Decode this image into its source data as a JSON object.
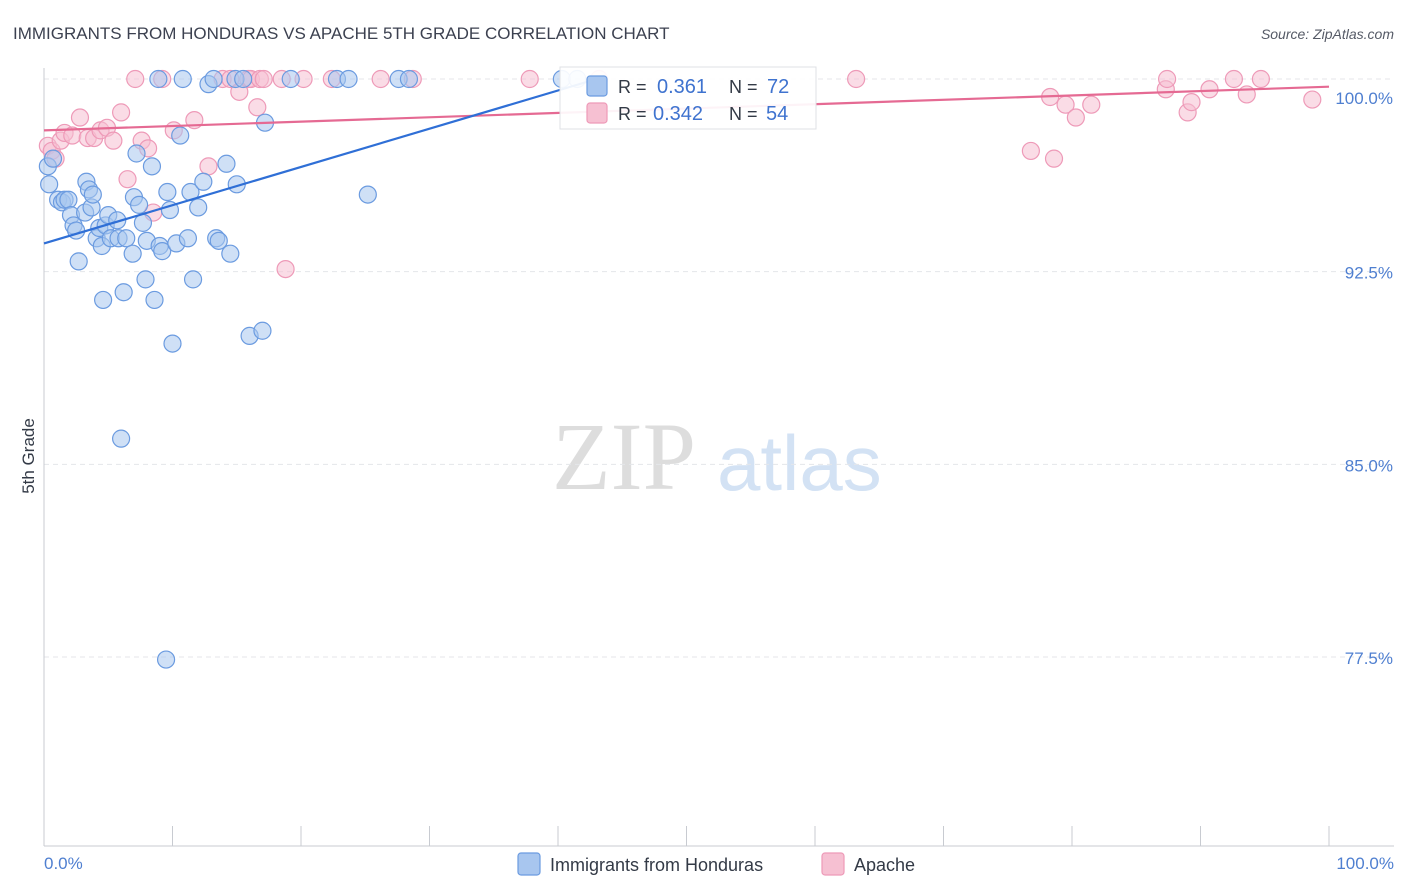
{
  "title": "IMMIGRANTS FROM HONDURAS VS APACHE 5TH GRADE CORRELATION CHART",
  "source": "Source: ZipAtlas.com",
  "watermark": {
    "zip": "ZIP",
    "atlas": "atlas"
  },
  "colors": {
    "blue_fill": "#a8c6ef",
    "blue_stroke": "#6b9be0",
    "blue_line": "#2f6fd6",
    "pink_fill": "#f6c0d2",
    "pink_stroke": "#ee9ab8",
    "pink_line": "#e56a93",
    "axis_text": "#4f7fd0",
    "grid": "#e4e6ea"
  },
  "stats": {
    "r_label": "R =",
    "n_label": "N =",
    "series1": {
      "r": "0.361",
      "n": "72"
    },
    "series2": {
      "r": "0.342",
      "n": "54"
    }
  },
  "chart_data": {
    "type": "scatter",
    "title": "IMMIGRANTS FROM HONDURAS VS APACHE 5TH GRADE CORRELATION CHART",
    "xlabel": "",
    "ylabel": "5th Grade",
    "xlim": [
      0,
      100
    ],
    "ylim": [
      71.0,
      101.8
    ],
    "x_tick_labels": [
      "0.0%",
      "100.0%"
    ],
    "y_ticks": [
      100.0,
      92.5,
      85.0,
      77.5
    ],
    "y_tick_labels": [
      "100.0%",
      "92.5%",
      "85.0%",
      "77.5%"
    ],
    "grid": true,
    "legend_position": "bottom-center",
    "series": [
      {
        "name": "Immigrants from Honduras",
        "color": "blue",
        "trendline": {
          "x": [
            0,
            43
          ],
          "y": [
            93.6,
            100.0
          ]
        },
        "points": [
          [
            0.3,
            96.6
          ],
          [
            0.4,
            95.9
          ],
          [
            0.7,
            96.9
          ],
          [
            1.1,
            95.3
          ],
          [
            1.4,
            95.2
          ],
          [
            1.6,
            95.3
          ],
          [
            1.9,
            95.3
          ],
          [
            2.1,
            94.7
          ],
          [
            2.3,
            94.3
          ],
          [
            2.5,
            94.1
          ],
          [
            2.7,
            92.9
          ],
          [
            3.2,
            94.8
          ],
          [
            3.3,
            96.0
          ],
          [
            3.5,
            95.7
          ],
          [
            3.7,
            95.0
          ],
          [
            3.8,
            95.5
          ],
          [
            4.1,
            93.8
          ],
          [
            4.3,
            94.2
          ],
          [
            4.5,
            93.5
          ],
          [
            4.6,
            91.4
          ],
          [
            4.8,
            94.3
          ],
          [
            5.0,
            94.7
          ],
          [
            5.2,
            93.8
          ],
          [
            5.7,
            94.5
          ],
          [
            5.8,
            93.8
          ],
          [
            6.0,
            86.0
          ],
          [
            6.2,
            91.7
          ],
          [
            6.4,
            93.8
          ],
          [
            6.9,
            93.2
          ],
          [
            7.0,
            95.4
          ],
          [
            7.2,
            97.1
          ],
          [
            7.4,
            95.1
          ],
          [
            7.7,
            94.4
          ],
          [
            7.9,
            92.2
          ],
          [
            8.0,
            93.7
          ],
          [
            8.4,
            96.6
          ],
          [
            8.6,
            91.4
          ],
          [
            8.9,
            100.0
          ],
          [
            9.0,
            93.5
          ],
          [
            9.2,
            93.3
          ],
          [
            9.5,
            77.4
          ],
          [
            9.6,
            95.6
          ],
          [
            9.8,
            94.9
          ],
          [
            10.0,
            89.7
          ],
          [
            10.3,
            93.6
          ],
          [
            10.6,
            97.8
          ],
          [
            10.8,
            100.0
          ],
          [
            11.2,
            93.8
          ],
          [
            11.4,
            95.6
          ],
          [
            11.6,
            92.2
          ],
          [
            12.0,
            95.0
          ],
          [
            12.4,
            96.0
          ],
          [
            12.8,
            99.8
          ],
          [
            13.2,
            100.0
          ],
          [
            13.4,
            93.8
          ],
          [
            13.6,
            93.7
          ],
          [
            14.2,
            96.7
          ],
          [
            14.5,
            93.2
          ],
          [
            14.9,
            100.0
          ],
          [
            15.0,
            95.9
          ],
          [
            15.5,
            100.0
          ],
          [
            16.0,
            90.0
          ],
          [
            17.0,
            90.2
          ],
          [
            17.2,
            98.3
          ],
          [
            19.2,
            100.0
          ],
          [
            22.8,
            100.0
          ],
          [
            23.7,
            100.0
          ],
          [
            25.2,
            95.5
          ],
          [
            27.6,
            100.0
          ],
          [
            28.4,
            100.0
          ],
          [
            40.3,
            100.0
          ],
          [
            41.5,
            100.0
          ]
        ]
      },
      {
        "name": "Apache",
        "color": "pink",
        "trendline": {
          "x": [
            0,
            100
          ],
          "y": [
            98.0,
            99.7
          ]
        },
        "points": [
          [
            0.3,
            97.4
          ],
          [
            0.6,
            97.2
          ],
          [
            0.9,
            96.9
          ],
          [
            1.3,
            97.6
          ],
          [
            1.6,
            97.9
          ],
          [
            2.2,
            97.8
          ],
          [
            2.8,
            98.5
          ],
          [
            3.4,
            97.7
          ],
          [
            3.9,
            97.7
          ],
          [
            4.4,
            98.0
          ],
          [
            4.9,
            98.1
          ],
          [
            5.4,
            97.6
          ],
          [
            6.0,
            98.7
          ],
          [
            6.5,
            96.1
          ],
          [
            7.1,
            100.0
          ],
          [
            7.6,
            97.6
          ],
          [
            8.1,
            97.3
          ],
          [
            8.5,
            94.8
          ],
          [
            9.2,
            100.0
          ],
          [
            10.1,
            98.0
          ],
          [
            11.7,
            98.4
          ],
          [
            12.8,
            96.6
          ],
          [
            13.9,
            100.0
          ],
          [
            14.5,
            100.0
          ],
          [
            15.2,
            99.5
          ],
          [
            15.9,
            100.0
          ],
          [
            16.1,
            100.0
          ],
          [
            16.6,
            98.9
          ],
          [
            16.8,
            100.0
          ],
          [
            17.1,
            100.0
          ],
          [
            18.5,
            100.0
          ],
          [
            18.8,
            92.6
          ],
          [
            20.2,
            100.0
          ],
          [
            22.4,
            100.0
          ],
          [
            26.2,
            100.0
          ],
          [
            28.7,
            100.0
          ],
          [
            37.8,
            100.0
          ],
          [
            43.2,
            100.0
          ],
          [
            63.2,
            100.0
          ],
          [
            76.8,
            97.2
          ],
          [
            78.3,
            99.3
          ],
          [
            78.6,
            96.9
          ],
          [
            79.5,
            99.0
          ],
          [
            80.3,
            98.5
          ],
          [
            81.5,
            99.0
          ],
          [
            87.3,
            99.6
          ],
          [
            87.4,
            100.0
          ],
          [
            89.0,
            98.7
          ],
          [
            89.3,
            99.1
          ],
          [
            90.7,
            99.6
          ],
          [
            92.6,
            100.0
          ],
          [
            93.6,
            99.4
          ],
          [
            94.7,
            100.0
          ],
          [
            98.7,
            99.2
          ]
        ]
      }
    ]
  },
  "legend": {
    "series1": "Immigrants from Honduras",
    "series2": "Apache"
  }
}
